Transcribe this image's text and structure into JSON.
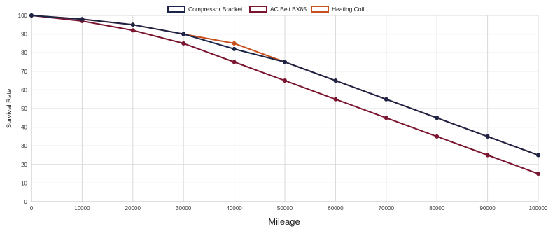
{
  "chart_data": {
    "type": "line",
    "xlabel": "Mileage",
    "ylabel": "Survival Rate",
    "xlim": [
      0,
      100000
    ],
    "ylim": [
      0,
      100
    ],
    "x_ticks": [
      0,
      10000,
      20000,
      30000,
      40000,
      50000,
      60000,
      70000,
      80000,
      90000,
      100000
    ],
    "y_ticks": [
      0,
      10,
      20,
      30,
      40,
      50,
      60,
      70,
      80,
      90,
      100
    ],
    "grid": true,
    "legend_position": "top-center",
    "series": [
      {
        "name": "Compressor Bracket",
        "color": "#1c2447",
        "x": [
          0,
          10000,
          20000,
          30000,
          40000,
          50000,
          60000,
          70000,
          80000,
          90000,
          100000
        ],
        "y": [
          100,
          98,
          95,
          90,
          82,
          75,
          65,
          55,
          45,
          35,
          25
        ]
      },
      {
        "name": "AC Belt BX85",
        "color": "#7a1530",
        "x": [
          0,
          10000,
          20000,
          30000,
          40000,
          50000,
          60000,
          70000,
          80000,
          90000,
          100000
        ],
        "y": [
          100,
          97,
          92,
          85,
          75,
          65,
          55,
          45,
          35,
          25,
          15
        ]
      },
      {
        "name": "Heating Coil",
        "color": "#c8501e",
        "x": [
          0,
          10000,
          20000,
          30000,
          40000,
          50000,
          60000,
          70000,
          80000,
          90000,
          100000
        ],
        "y": [
          100,
          98,
          95,
          90,
          85,
          75,
          65,
          55,
          45,
          35,
          25
        ]
      }
    ]
  }
}
